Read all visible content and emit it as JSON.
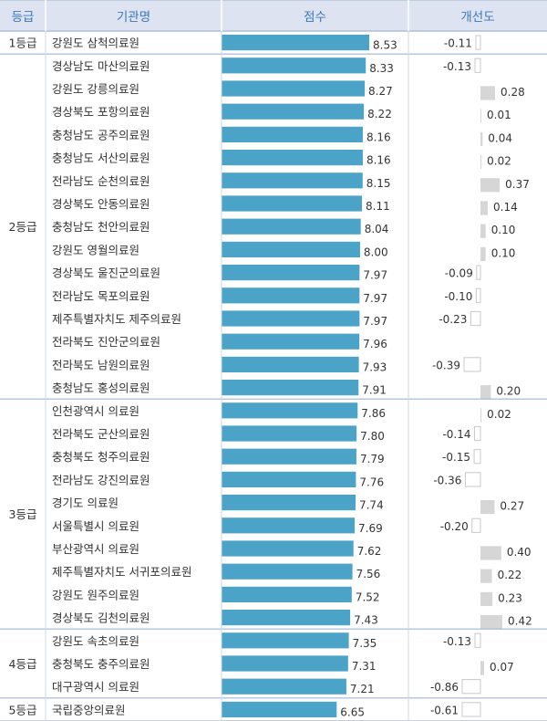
{
  "chart_data": {
    "type": "table",
    "columns": [
      "등급",
      "기관명",
      "점수",
      "개선도"
    ],
    "groups": [
      {
        "grade": "1등급",
        "rows": [
          {
            "name": "강원도 삼척의료원",
            "score": 8.53,
            "improvement": -0.11
          }
        ]
      },
      {
        "grade": "2등급",
        "rows": [
          {
            "name": "경상남도 마산의료원",
            "score": 8.33,
            "improvement": -0.13
          },
          {
            "name": "강원도 강릉의료원",
            "score": 8.27,
            "improvement": 0.28
          },
          {
            "name": "경상북도 포항의료원",
            "score": 8.22,
            "improvement": 0.01
          },
          {
            "name": "충청남도 공주의료원",
            "score": 8.16,
            "improvement": 0.04
          },
          {
            "name": "충청남도 서산의료원",
            "score": 8.16,
            "improvement": 0.02
          },
          {
            "name": "전라남도 순천의료원",
            "score": 8.15,
            "improvement": 0.37
          },
          {
            "name": "경상북도 안동의료원",
            "score": 8.11,
            "improvement": 0.14
          },
          {
            "name": "충청남도 천안의료원",
            "score": 8.04,
            "improvement": 0.1
          },
          {
            "name": "강원도 영월의료원",
            "score": 8.0,
            "improvement": 0.1
          },
          {
            "name": "경상북도 울진군의료원",
            "score": 7.97,
            "improvement": -0.09
          },
          {
            "name": "전라남도 목포의료원",
            "score": 7.97,
            "improvement": -0.1
          },
          {
            "name": "제주특별자치도 제주의료원",
            "score": 7.97,
            "improvement": -0.23
          },
          {
            "name": "전라북도 진안군의료원",
            "score": 7.96,
            "improvement": null
          },
          {
            "name": "전라북도 남원의료원",
            "score": 7.93,
            "improvement": -0.39
          },
          {
            "name": "충청남도 홍성의료원",
            "score": 7.91,
            "improvement": 0.2
          }
        ]
      },
      {
        "grade": "3등급",
        "rows": [
          {
            "name": "인천광역시 의료원",
            "score": 7.86,
            "improvement": 0.02
          },
          {
            "name": "전라북도 군산의료원",
            "score": 7.8,
            "improvement": -0.14
          },
          {
            "name": "충청북도 청주의료원",
            "score": 7.79,
            "improvement": -0.15
          },
          {
            "name": "전라남도 강진의료원",
            "score": 7.76,
            "improvement": -0.36
          },
          {
            "name": "경기도 의료원",
            "score": 7.74,
            "improvement": 0.27
          },
          {
            "name": "서울특별시 의료원",
            "score": 7.69,
            "improvement": -0.2
          },
          {
            "name": "부산광역시 의료원",
            "score": 7.62,
            "improvement": 0.4
          },
          {
            "name": "제주특별자치도 서귀포의료원",
            "score": 7.56,
            "improvement": 0.22
          },
          {
            "name": "강원도 원주의료원",
            "score": 7.52,
            "improvement": 0.23
          },
          {
            "name": "경상북도 김천의료원",
            "score": 7.43,
            "improvement": 0.42
          }
        ]
      },
      {
        "grade": "4등급",
        "rows": [
          {
            "name": "강원도 속초의료원",
            "score": 7.35,
            "improvement": -0.13
          },
          {
            "name": "충청북도 충주의료원",
            "score": 7.31,
            "improvement": 0.07
          },
          {
            "name": "대구광역시 의료원",
            "score": 7.21,
            "improvement": -0.86
          }
        ]
      },
      {
        "grade": "5등급",
        "rows": [
          {
            "name": "국립중앙의료원",
            "score": 6.65,
            "improvement": -0.61
          }
        ]
      }
    ],
    "score_range": [
      0,
      8.53
    ],
    "improvement_range": [
      -0.86,
      0.42
    ],
    "colors": {
      "header_bg": "#dde3f0",
      "header_text": "#3c78b8",
      "score_bar": "#4ba3c7",
      "pos_bar": "#d6d6d6",
      "neg_bar_border": "#c8c8c8",
      "text": "#333333",
      "border": "#9fb5d0"
    }
  }
}
